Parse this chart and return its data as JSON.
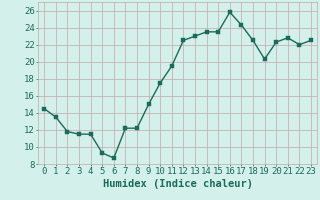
{
  "x": [
    0,
    1,
    2,
    3,
    4,
    5,
    6,
    7,
    8,
    9,
    10,
    11,
    12,
    13,
    14,
    15,
    16,
    17,
    18,
    19,
    20,
    21,
    22,
    23
  ],
  "y": [
    14.5,
    13.5,
    11.8,
    11.5,
    11.5,
    9.3,
    8.7,
    12.2,
    12.2,
    15.0,
    17.5,
    19.5,
    22.5,
    23.0,
    23.5,
    23.5,
    25.8,
    24.3,
    22.5,
    20.3,
    22.3,
    22.8,
    22.0,
    22.5
  ],
  "xlabel": "Humidex (Indice chaleur)",
  "line_color": "#1a6b5a",
  "marker_color": "#1a6b5a",
  "bg_color": "#d4f0eb",
  "grid_color": "#c4a8a8",
  "xlim": [
    -0.5,
    23.5
  ],
  "ylim": [
    8,
    27
  ],
  "yticks": [
    8,
    10,
    12,
    14,
    16,
    18,
    20,
    22,
    24,
    26
  ],
  "xticks": [
    0,
    1,
    2,
    3,
    4,
    5,
    6,
    7,
    8,
    9,
    10,
    11,
    12,
    13,
    14,
    15,
    16,
    17,
    18,
    19,
    20,
    21,
    22,
    23
  ],
  "xlabel_fontsize": 7.5,
  "tick_fontsize": 6.5,
  "linewidth": 1.0,
  "markersize": 2.5
}
